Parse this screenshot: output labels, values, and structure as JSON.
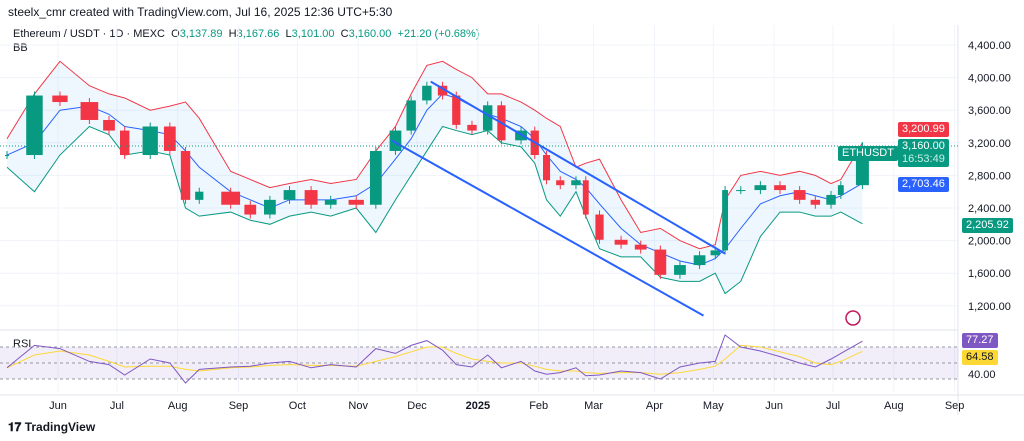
{
  "header": {
    "credit": "steelx_cmr created with TradingView.com, Jul 16, 2025 12:36 UTC+5:30",
    "symbol": "Ethereum / USDT · 1D · MEXC",
    "o_label": "O",
    "o": "3,137.89",
    "h_label": "H",
    "h": "3,167.66",
    "l_label": "L",
    "l": "3,101.00",
    "c_label": "C",
    "c": "3,160.00",
    "change": "+21.20 (+0.68%)",
    "indicator": "BB"
  },
  "rsi_label": "RSI",
  "footer": {
    "brand": "TradingView"
  },
  "colors": {
    "up": "#089981",
    "down": "#f23645",
    "bb_upper": "#f23645",
    "bb_basis": "#2962ff",
    "bb_lower": "#089981",
    "rsi": "#7e57c2",
    "rsi_ma": "#fdd835",
    "trendline": "#2962ff"
  },
  "chart_data": {
    "type": "candlestick",
    "yaxis_ticks": [
      "4,400.00",
      "4,000.00",
      "3,600.00",
      "3,200.00",
      "2,800.00",
      "2,400.00",
      "2,000.00",
      "1,600.00",
      "1,200.00"
    ],
    "yaxis_tick_values": [
      4400,
      4000,
      3600,
      3200,
      2800,
      2400,
      2000,
      1600,
      1200
    ],
    "xaxis_ticks": [
      {
        "label": "Jun",
        "date": "2024-06-01"
      },
      {
        "label": "Jul",
        "date": "2024-07-01"
      },
      {
        "label": "Aug",
        "date": "2024-08-01"
      },
      {
        "label": "Sep",
        "date": "2024-09-01"
      },
      {
        "label": "Oct",
        "date": "2024-10-01"
      },
      {
        "label": "Nov",
        "date": "2024-11-01"
      },
      {
        "label": "Dec",
        "date": "2024-12-01"
      },
      {
        "label": "2025",
        "date": "2025-01-01"
      },
      {
        "label": "Feb",
        "date": "2025-02-01"
      },
      {
        "label": "Mar",
        "date": "2025-03-01"
      },
      {
        "label": "Apr",
        "date": "2025-04-01"
      },
      {
        "label": "May",
        "date": "2025-05-01"
      },
      {
        "label": "Jun",
        "date": "2025-06-01"
      },
      {
        "label": "Jul",
        "date": "2025-07-01"
      },
      {
        "label": "Aug",
        "date": "2025-08-01"
      },
      {
        "label": "Sep",
        "date": "2025-09-01"
      }
    ],
    "dates": [
      "2024-05-06",
      "2024-05-20",
      "2024-06-02",
      "2024-06-17",
      "2024-06-27",
      "2024-07-05",
      "2024-07-18",
      "2024-07-28",
      "2024-08-05",
      "2024-08-12",
      "2024-08-28",
      "2024-09-07",
      "2024-09-17",
      "2024-09-27",
      "2024-10-08",
      "2024-10-18",
      "2024-10-31",
      "2024-11-10",
      "2024-11-20",
      "2024-11-28",
      "2024-12-06",
      "2024-12-14",
      "2024-12-21",
      "2024-12-29",
      "2025-01-06",
      "2025-01-13",
      "2025-01-23",
      "2025-01-30",
      "2025-02-05",
      "2025-02-12",
      "2025-02-20",
      "2025-02-25",
      "2025-03-04",
      "2025-03-15",
      "2025-03-25",
      "2025-04-04",
      "2025-04-14",
      "2025-04-24",
      "2025-05-02",
      "2025-05-07",
      "2025-05-15",
      "2025-05-25",
      "2025-06-04",
      "2025-06-14",
      "2025-06-22",
      "2025-06-30",
      "2025-07-05",
      "2025-07-16"
    ],
    "close": [
      3050,
      3780,
      3700,
      3480,
      3350,
      3050,
      3400,
      3100,
      2500,
      2600,
      2440,
      2320,
      2500,
      2620,
      2440,
      2500,
      2440,
      3100,
      3350,
      3720,
      3900,
      3780,
      3420,
      3350,
      3660,
      3230,
      3350,
      3050,
      2740,
      2680,
      2740,
      2320,
      2010,
      1950,
      1890,
      1580,
      1700,
      1820,
      1880,
      2620,
      2620,
      2680,
      2620,
      2500,
      2440,
      2560,
      2680,
      3160
    ],
    "bb_upper": [
      3250,
      3800,
      4200,
      3900,
      3800,
      3750,
      3600,
      3650,
      3700,
      3500,
      2850,
      2750,
      2650,
      2700,
      2750,
      2700,
      2750,
      3100,
      3400,
      3800,
      4150,
      4200,
      4100,
      4000,
      3800,
      3800,
      3700,
      3600,
      3500,
      3400,
      2900,
      2950,
      3000,
      2500,
      2100,
      2150,
      2000,
      1900,
      1950,
      2500,
      2800,
      2850,
      2800,
      2850,
      2800,
      2700,
      2750,
      3200.99
    ],
    "bb_basis": [
      3050,
      3200,
      3600,
      3650,
      3550,
      3400,
      3350,
      3300,
      3100,
      2900,
      2600,
      2500,
      2400,
      2500,
      2500,
      2500,
      2550,
      2700,
      3000,
      3250,
      3600,
      3800,
      3750,
      3650,
      3550,
      3500,
      3400,
      3250,
      3050,
      2850,
      2750,
      2650,
      2450,
      2150,
      1950,
      1850,
      1750,
      1700,
      1780,
      1900,
      2150,
      2450,
      2550,
      2600,
      2550,
      2500,
      2550,
      2703.46
    ],
    "bb_lower": [
      2900,
      2600,
      3050,
      3400,
      3300,
      3050,
      3100,
      3050,
      2400,
      2300,
      2350,
      2250,
      2200,
      2300,
      2350,
      2300,
      2400,
      2100,
      2500,
      2800,
      3100,
      3400,
      3350,
      3300,
      3350,
      3200,
      3150,
      2950,
      2500,
      2300,
      2600,
      2300,
      1900,
      1800,
      1800,
      1550,
      1500,
      1500,
      1600,
      1350,
      1500,
      2050,
      2350,
      2350,
      2300,
      2300,
      2350,
      2205.92
    ],
    "last_price": {
      "symbol": "ETHUSDT",
      "value": "3,160.00",
      "countdown": "16:53:49"
    },
    "bb_labels": {
      "upper": "3,200.99",
      "basis": "2,703.46",
      "lower": "2,205.92"
    },
    "trendlines": [
      {
        "from": {
          "date": "2024-12-08",
          "price": 3950
        },
        "to": {
          "date": "2025-05-07",
          "price": 1840
        }
      },
      {
        "from": {
          "date": "2024-11-18",
          "price": 3230
        },
        "to": {
          "date": "2025-04-26",
          "price": 1080
        }
      }
    ],
    "rsi": {
      "levels": [
        70,
        50,
        30
      ],
      "tick_label": "40.00",
      "tick_value": 40,
      "value_label": "77.27",
      "ma_label": "64.58",
      "values": [
        44,
        72,
        68,
        52,
        48,
        35,
        55,
        50,
        25,
        42,
        45,
        46,
        50,
        52,
        44,
        48,
        45,
        68,
        62,
        72,
        78,
        66,
        48,
        45,
        60,
        44,
        52,
        40,
        36,
        38,
        44,
        34,
        35,
        40,
        38,
        30,
        45,
        50,
        52,
        85,
        70,
        65,
        58,
        50,
        45,
        55,
        62,
        77.27
      ],
      "ma": [
        44,
        60,
        65,
        60,
        52,
        45,
        46,
        46,
        42,
        40,
        44,
        45,
        47,
        48,
        47,
        47,
        46,
        52,
        58,
        64,
        70,
        70,
        62,
        55,
        52,
        50,
        50,
        46,
        42,
        40,
        40,
        38,
        37,
        38,
        38,
        36,
        38,
        42,
        46,
        55,
        72,
        70,
        64,
        58,
        50,
        48,
        52,
        64.58
      ]
    }
  }
}
